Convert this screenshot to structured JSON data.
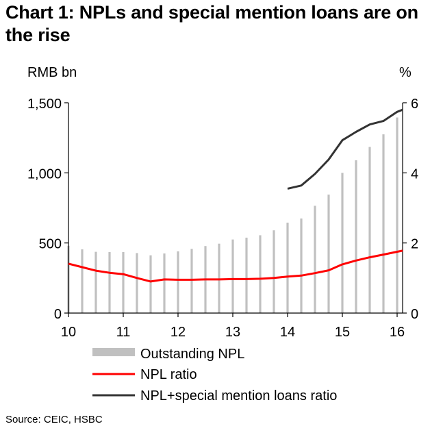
{
  "chart_data": {
    "type": "bar+line",
    "title": "Chart 1: NPLs and special mention loans are on the rise",
    "left_axis_unit": "RMB bn",
    "right_axis_unit": "%",
    "x_ticks": [
      "10",
      "11",
      "12",
      "13",
      "14",
      "15",
      "16"
    ],
    "left_ticks": [
      "0",
      "500",
      "1,000",
      "1,500"
    ],
    "right_ticks": [
      "0",
      "2",
      "4",
      "6"
    ],
    "ylim_left": [
      0,
      1500
    ],
    "ylim_right": [
      0,
      6
    ],
    "xlim": [
      2010.0,
      2016.1
    ],
    "quarters": [
      2010.0,
      2010.25,
      2010.5,
      2010.75,
      2011.0,
      2011.25,
      2011.5,
      2011.75,
      2012.0,
      2012.25,
      2012.5,
      2012.75,
      2013.0,
      2013.25,
      2013.5,
      2013.75,
      2014.0,
      2014.25,
      2014.5,
      2014.75,
      2015.0,
      2015.25,
      2015.5,
      2015.75,
      2016.0
    ],
    "series": [
      {
        "name": "Outstanding NPL",
        "type": "bar",
        "axis": "left",
        "color": "#c0c0c0",
        "values": [
          480,
          455,
          437,
          435,
          435,
          428,
          412,
          425,
          440,
          458,
          478,
          495,
          525,
          538,
          555,
          590,
          645,
          675,
          765,
          845,
          1000,
          1090,
          1185,
          1275,
          1395
        ]
      },
      {
        "name": "NPL ratio",
        "type": "line",
        "axis": "right",
        "color": "#ff0000",
        "x": [
          2010.0,
          2010.25,
          2010.5,
          2010.75,
          2011.0,
          2011.25,
          2011.5,
          2011.75,
          2012.0,
          2012.25,
          2012.5,
          2012.75,
          2013.0,
          2013.25,
          2013.5,
          2013.75,
          2014.0,
          2014.25,
          2014.5,
          2014.75,
          2015.0,
          2015.25,
          2015.5,
          2015.75,
          2016.0,
          2016.1
        ],
        "values": [
          1.41,
          1.31,
          1.21,
          1.15,
          1.11,
          1.0,
          0.9,
          0.96,
          0.95,
          0.95,
          0.96,
          0.96,
          0.97,
          0.97,
          0.98,
          1.0,
          1.04,
          1.07,
          1.14,
          1.22,
          1.39,
          1.5,
          1.59,
          1.67,
          1.75,
          1.78
        ]
      },
      {
        "name": "NPL+special mention loans ratio",
        "type": "line",
        "axis": "right",
        "color": "#333333",
        "x": [
          2014.0,
          2014.25,
          2014.5,
          2014.75,
          2015.0,
          2015.25,
          2015.5,
          2015.75,
          2016.0,
          2016.1
        ],
        "values": [
          3.55,
          3.64,
          3.97,
          4.38,
          4.93,
          5.17,
          5.38,
          5.48,
          5.74,
          5.8
        ]
      }
    ],
    "source": "Source: CEIC, HSBC"
  }
}
